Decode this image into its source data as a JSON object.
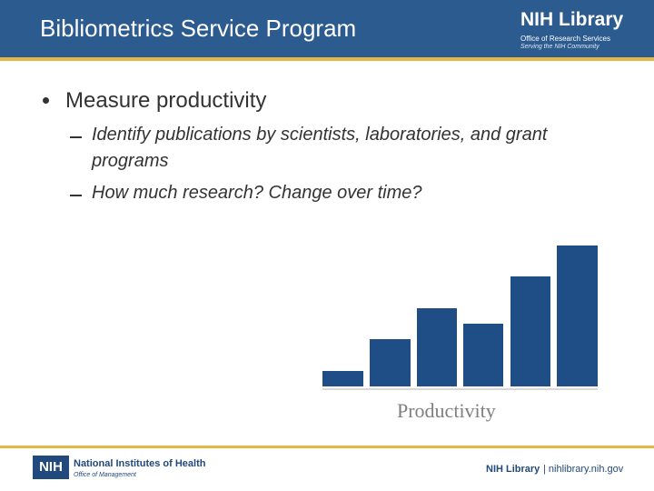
{
  "header": {
    "title": "Bibliometrics Service Program",
    "logo": {
      "name": "NIH Library",
      "line1": "Office of Research Services",
      "line2": "Serving the NIH Community"
    }
  },
  "body": {
    "bullet": "Measure productivity",
    "subbullets": [
      "Identify publications by scientists, laboratories, and grant programs",
      "How much research? Change over time?"
    ],
    "graphic_label": "Productivity"
  },
  "footer": {
    "left": {
      "badge": "NIH",
      "name": "National Institutes of Health",
      "sub": "Office of Management"
    },
    "right": {
      "name": "NIH Library",
      "url": "| nihlibrary.nih.gov"
    }
  }
}
